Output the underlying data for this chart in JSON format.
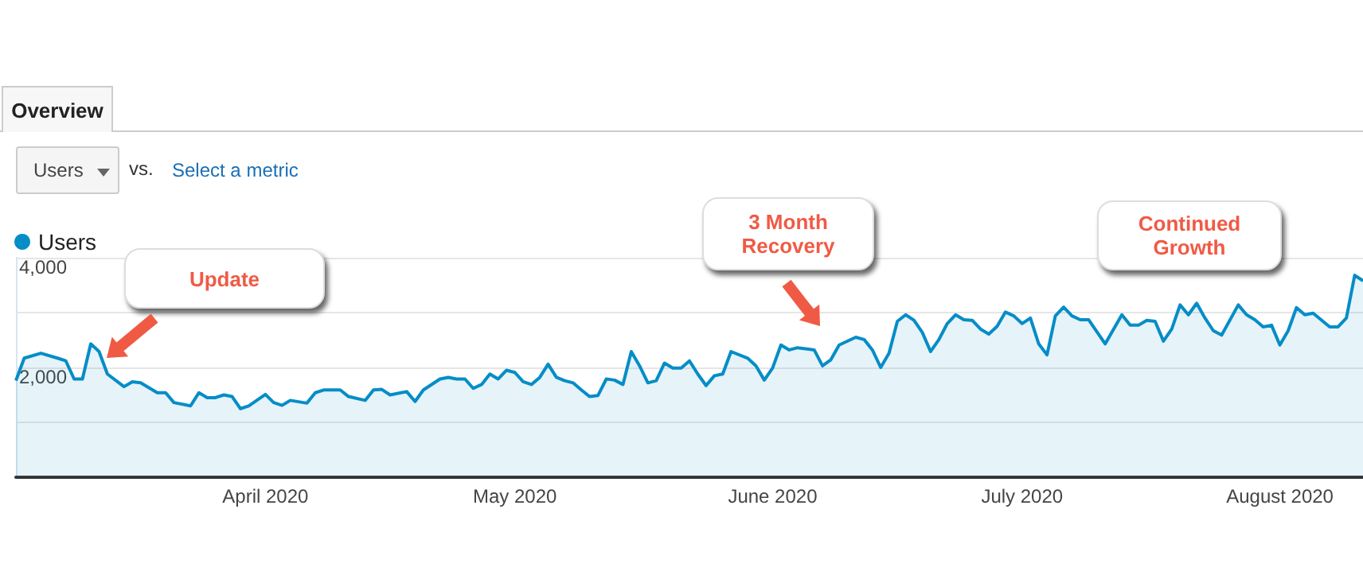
{
  "chart_data": {
    "type": "area",
    "title": "Overview",
    "x": [
      "2020-03-02",
      "2020-03-03",
      "2020-03-05",
      "2020-03-07",
      "2020-03-08",
      "2020-03-09",
      "2020-03-10",
      "2020-03-11",
      "2020-03-12",
      "2020-03-13",
      "2020-03-15",
      "2020-03-16",
      "2020-03-17",
      "2020-03-19",
      "2020-03-20",
      "2020-03-21",
      "2020-03-23",
      "2020-03-24",
      "2020-03-25",
      "2020-03-26",
      "2020-03-27",
      "2020-03-28",
      "2020-03-29",
      "2020-03-30",
      "2020-04-01",
      "2020-04-02",
      "2020-04-03",
      "2020-04-04",
      "2020-04-06",
      "2020-04-07",
      "2020-04-08",
      "2020-04-10",
      "2020-04-11",
      "2020-04-13",
      "2020-04-14",
      "2020-04-15",
      "2020-04-16",
      "2020-04-18",
      "2020-04-19",
      "2020-04-20",
      "2020-04-22",
      "2020-04-23",
      "2020-04-24",
      "2020-04-25",
      "2020-04-26",
      "2020-04-27",
      "2020-04-28",
      "2020-04-29",
      "2020-04-30",
      "2020-05-01",
      "2020-05-02",
      "2020-05-03",
      "2020-05-04",
      "2020-05-05",
      "2020-05-06",
      "2020-05-07",
      "2020-05-08",
      "2020-05-09",
      "2020-05-10",
      "2020-05-11",
      "2020-05-12",
      "2020-05-13",
      "2020-05-14",
      "2020-05-15",
      "2020-05-16",
      "2020-05-17",
      "2020-05-18",
      "2020-05-19",
      "2020-05-20",
      "2020-05-21",
      "2020-05-22",
      "2020-05-23",
      "2020-05-24",
      "2020-05-25",
      "2020-05-26",
      "2020-05-27",
      "2020-05-29",
      "2020-05-30",
      "2020-05-31",
      "2020-06-01",
      "2020-06-02",
      "2020-06-03",
      "2020-06-04",
      "2020-06-06",
      "2020-06-07",
      "2020-06-08",
      "2020-06-09",
      "2020-06-11",
      "2020-06-12",
      "2020-06-13",
      "2020-06-14",
      "2020-06-15",
      "2020-06-16",
      "2020-06-17",
      "2020-06-18",
      "2020-06-19",
      "2020-06-20",
      "2020-06-21",
      "2020-06-22",
      "2020-06-23",
      "2020-06-24",
      "2020-06-25",
      "2020-06-26",
      "2020-06-27",
      "2020-06-28",
      "2020-06-29",
      "2020-06-30",
      "2020-07-01",
      "2020-07-02",
      "2020-07-03",
      "2020-07-04",
      "2020-07-05",
      "2020-07-06",
      "2020-07-07",
      "2020-07-08",
      "2020-07-09",
      "2020-07-11",
      "2020-07-13",
      "2020-07-14",
      "2020-07-15",
      "2020-07-16",
      "2020-07-17",
      "2020-07-18",
      "2020-07-19",
      "2020-07-20",
      "2020-07-21",
      "2020-07-22",
      "2020-07-23",
      "2020-07-24",
      "2020-07-25",
      "2020-07-27",
      "2020-07-28",
      "2020-07-29",
      "2020-07-30",
      "2020-07-31",
      "2020-08-01",
      "2020-08-02",
      "2020-08-03",
      "2020-08-04",
      "2020-08-05",
      "2020-08-07",
      "2020-08-08",
      "2020-08-09",
      "2020-08-10",
      "2020-08-11"
    ],
    "series": [
      {
        "name": "Users",
        "color": "#058dc7",
        "values": [
          1760,
          2170,
          2260,
          2170,
          2120,
          1790,
          1790,
          2430,
          2290,
          1880,
          1650,
          1740,
          1720,
          1540,
          1540,
          1360,
          1300,
          1540,
          1450,
          1450,
          1500,
          1470,
          1250,
          1300,
          1510,
          1360,
          1310,
          1400,
          1350,
          1540,
          1590,
          1590,
          1470,
          1400,
          1590,
          1600,
          1500,
          1560,
          1380,
          1590,
          1790,
          1820,
          1790,
          1790,
          1620,
          1690,
          1880,
          1790,
          1950,
          1910,
          1740,
          1690,
          1820,
          2060,
          1820,
          1760,
          1720,
          1590,
          1470,
          1490,
          1790,
          1770,
          1690,
          2290,
          2030,
          1720,
          1760,
          2080,
          1990,
          1990,
          2120,
          1880,
          1670,
          1850,
          1880,
          2290,
          2170,
          2030,
          1770,
          1990,
          2410,
          2320,
          2360,
          2320,
          2030,
          2140,
          2410,
          2550,
          2510,
          2320,
          2000,
          2260,
          2840,
          2960,
          2860,
          2640,
          2290,
          2510,
          2800,
          2960,
          2870,
          2860,
          2700,
          2610,
          2750,
          3010,
          2940,
          2800,
          2900,
          2430,
          2230,
          2940,
          3100,
          2940,
          2870,
          2870,
          2430,
          2960,
          2770,
          2770,
          2860,
          2840,
          2480,
          2700,
          3140,
          2960,
          3170,
          2900,
          2670,
          2590,
          3140,
          2960,
          2870,
          2740,
          2770,
          2410,
          2670,
          3090,
          2960,
          2990,
          2740,
          2740,
          2900,
          3680,
          3580
        ]
      }
    ],
    "xlim": [
      "2020-03-02",
      "2020-08-11"
    ],
    "xticks": [
      {
        "value": "2020-04-01",
        "label": "April 2020"
      },
      {
        "value": "2020-05-01",
        "label": "May 2020"
      },
      {
        "value": "2020-06-01",
        "label": "June 2020"
      },
      {
        "value": "2020-07-01",
        "label": "July 2020"
      },
      {
        "value": "2020-08-01",
        "label": "August 2020"
      }
    ],
    "ylim": [
      0,
      4000
    ],
    "yticks": [
      {
        "value": 1000,
        "label": null
      },
      {
        "value": 2000,
        "label": "2,000"
      },
      {
        "value": 3000,
        "label": null
      },
      {
        "value": 4000,
        "label": "4,000"
      }
    ],
    "grid": "y",
    "legend": "top left",
    "marker": "none",
    "line_style": "solid",
    "annotations": [
      "Users",
      "vs.",
      "Select a metric",
      "Update",
      "3 Month Recovery",
      "Continued Growth"
    ]
  }
}
